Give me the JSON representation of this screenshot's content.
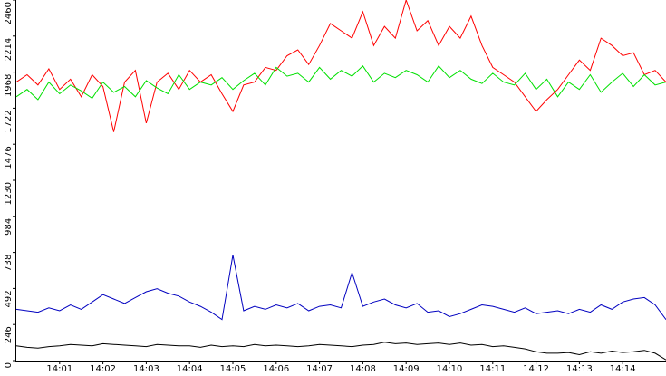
{
  "chart_data": {
    "type": "line",
    "x": [
      0,
      0.25,
      0.5,
      0.75,
      1,
      1.25,
      1.5,
      1.75,
      2,
      2.25,
      2.5,
      2.75,
      3,
      3.25,
      3.5,
      3.75,
      4,
      4.25,
      4.5,
      4.75,
      5,
      5.25,
      5.5,
      5.75,
      6,
      6.25,
      6.5,
      6.75,
      7,
      7.25,
      7.5,
      7.75,
      8,
      8.25,
      8.5,
      8.75,
      9,
      9.25,
      9.5,
      9.75,
      10,
      10.25,
      10.5,
      10.75,
      11,
      11.25,
      11.5,
      11.75,
      12,
      12.25,
      12.5,
      12.75,
      13,
      13.25,
      13.5,
      13.75,
      14,
      14.25,
      14.5,
      14.75,
      15
    ],
    "series": [
      {
        "color": "#ff0000",
        "values": [
          1900,
          1950,
          1880,
          1990,
          1850,
          1920,
          1800,
          1950,
          1870,
          1560,
          1900,
          1980,
          1620,
          1900,
          1960,
          1850,
          1980,
          1900,
          1950,
          1820,
          1700,
          1880,
          1900,
          2000,
          1980,
          2080,
          2120,
          2020,
          2150,
          2300,
          2250,
          2200,
          2380,
          2150,
          2280,
          2200,
          2460,
          2250,
          2320,
          2150,
          2280,
          2200,
          2350,
          2150,
          2000,
          1950,
          1900,
          1800,
          1700,
          1780,
          1850,
          1950,
          2050,
          1980,
          2200,
          2150,
          2080,
          2100,
          1950,
          1980,
          1900
        ]
      },
      {
        "color": "#00e000",
        "values": [
          1800,
          1850,
          1780,
          1900,
          1820,
          1880,
          1840,
          1790,
          1900,
          1830,
          1870,
          1800,
          1910,
          1860,
          1820,
          1950,
          1850,
          1900,
          1880,
          1930,
          1850,
          1910,
          1960,
          1880,
          2000,
          1940,
          1960,
          1900,
          2000,
          1920,
          1980,
          1940,
          2010,
          1900,
          1960,
          1930,
          1980,
          1950,
          1900,
          2010,
          1930,
          1980,
          1920,
          1890,
          1960,
          1900,
          1880,
          1960,
          1850,
          1920,
          1800,
          1900,
          1850,
          1950,
          1830,
          1900,
          1960,
          1870,
          1950,
          1880,
          1900
        ]
      },
      {
        "color": "#0000c0",
        "values": [
          350,
          340,
          330,
          360,
          340,
          380,
          350,
          400,
          450,
          420,
          390,
          430,
          470,
          490,
          460,
          440,
          400,
          370,
          330,
          280,
          720,
          340,
          370,
          350,
          380,
          360,
          390,
          340,
          370,
          380,
          360,
          600,
          370,
          400,
          420,
          380,
          360,
          390,
          330,
          340,
          300,
          320,
          350,
          380,
          370,
          350,
          330,
          360,
          320,
          330,
          340,
          320,
          350,
          330,
          380,
          350,
          400,
          420,
          430,
          380,
          280
        ]
      },
      {
        "color": "#000000",
        "values": [
          100,
          90,
          85,
          95,
          100,
          110,
          105,
          100,
          115,
          110,
          105,
          100,
          95,
          110,
          105,
          100,
          100,
          90,
          105,
          95,
          100,
          95,
          110,
          100,
          105,
          100,
          95,
          100,
          110,
          105,
          100,
          95,
          105,
          110,
          125,
          115,
          120,
          110,
          115,
          120,
          110,
          120,
          105,
          110,
          95,
          100,
          90,
          80,
          60,
          50,
          50,
          55,
          40,
          60,
          50,
          65,
          55,
          60,
          70,
          50,
          5
        ]
      }
    ],
    "xlim": [
      0,
      15
    ],
    "xticks": [
      {
        "value": 1,
        "label": "14:01"
      },
      {
        "value": 2,
        "label": "14:02"
      },
      {
        "value": 3,
        "label": "14:03"
      },
      {
        "value": 4,
        "label": "14:04"
      },
      {
        "value": 5,
        "label": "14:05"
      },
      {
        "value": 6,
        "label": "14:06"
      },
      {
        "value": 7,
        "label": "14:07"
      },
      {
        "value": 8,
        "label": "14:08"
      },
      {
        "value": 9,
        "label": "14:09"
      },
      {
        "value": 10,
        "label": "14:10"
      },
      {
        "value": 11,
        "label": "14:11"
      },
      {
        "value": 12,
        "label": "14:12"
      },
      {
        "value": 13,
        "label": "14:13"
      },
      {
        "value": 14,
        "label": "14:14"
      }
    ],
    "ylim": [
      0,
      2460
    ],
    "yticks": [
      0,
      246,
      492,
      738,
      984,
      1230,
      1476,
      1722,
      1968,
      2214,
      2460
    ]
  }
}
